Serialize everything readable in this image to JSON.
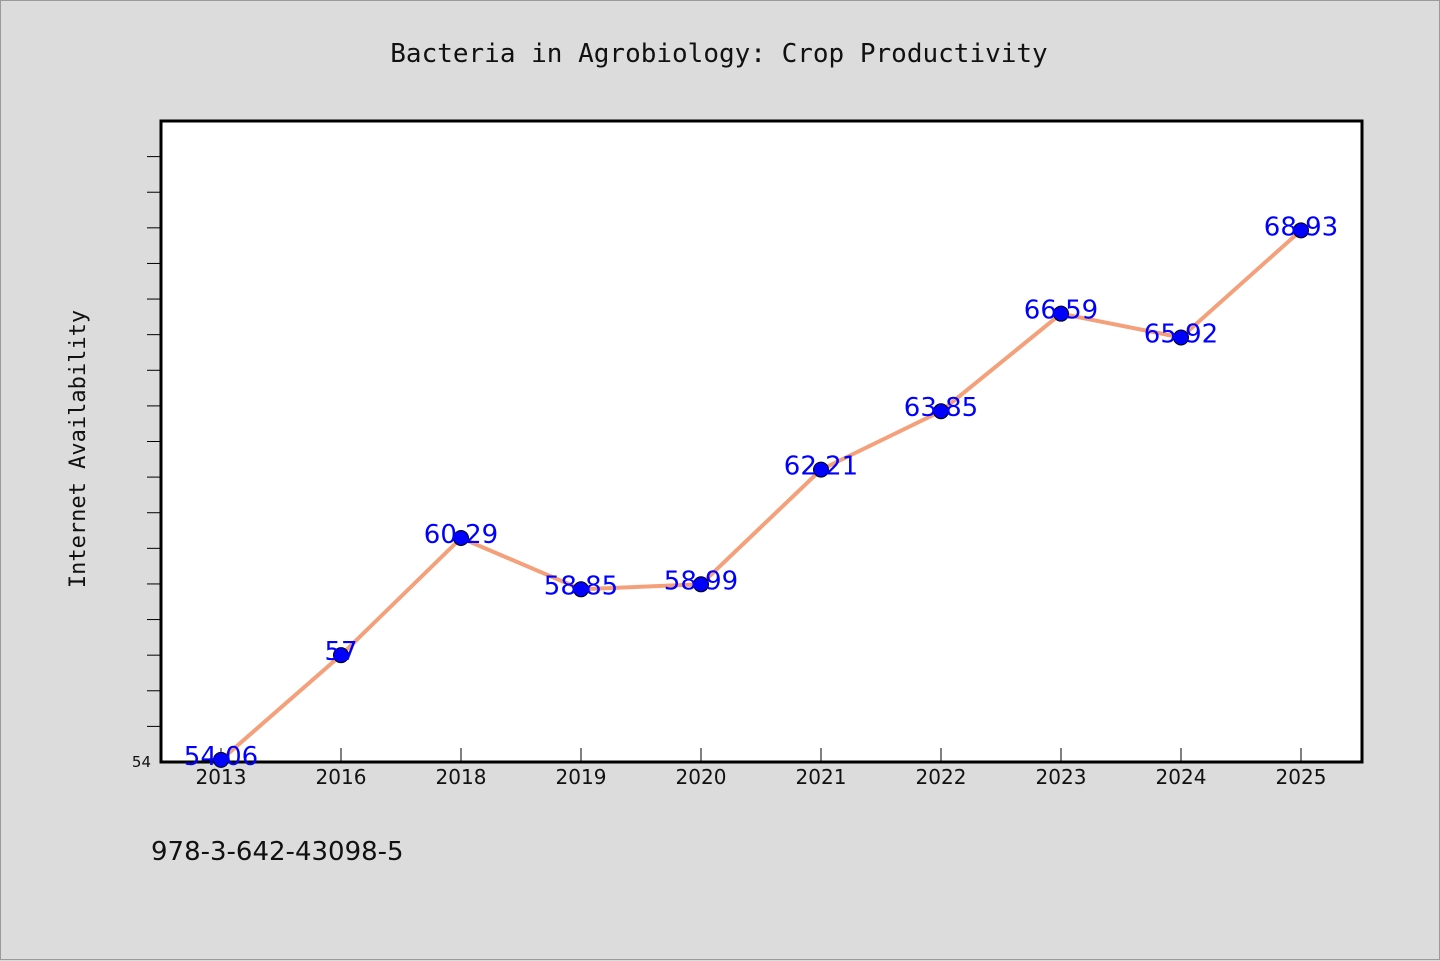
{
  "chart_data": {
    "type": "line",
    "title": "Bacteria in Agrobiology: Crop Productivity",
    "xlabel": "",
    "ylabel": "Internet Availability",
    "categories": [
      "2013",
      "2016",
      "2018",
      "2019",
      "2020",
      "2021",
      "2022",
      "2023",
      "2024",
      "2025"
    ],
    "series": [
      {
        "values": [
          54.06,
          57,
          60.29,
          58.85,
          58.99,
          62.21,
          63.85,
          66.59,
          65.92,
          68.93
        ],
        "labels": [
          "54.06",
          "57",
          "60.29",
          "58.85",
          "58.99",
          "62.21",
          "63.85",
          "66.59",
          "65.92",
          "68.93"
        ],
        "line_color": "#f4a07a",
        "marker_color": "#0000ff"
      }
    ],
    "ylim": [
      54,
      72
    ],
    "y_tick_labels": [
      "54"
    ],
    "grid": false,
    "legend": "none",
    "plot_background": "#ffffff",
    "figure_background": "#dcdcdc"
  },
  "footer": {
    "isbn": "978-3-642-43098-5"
  }
}
